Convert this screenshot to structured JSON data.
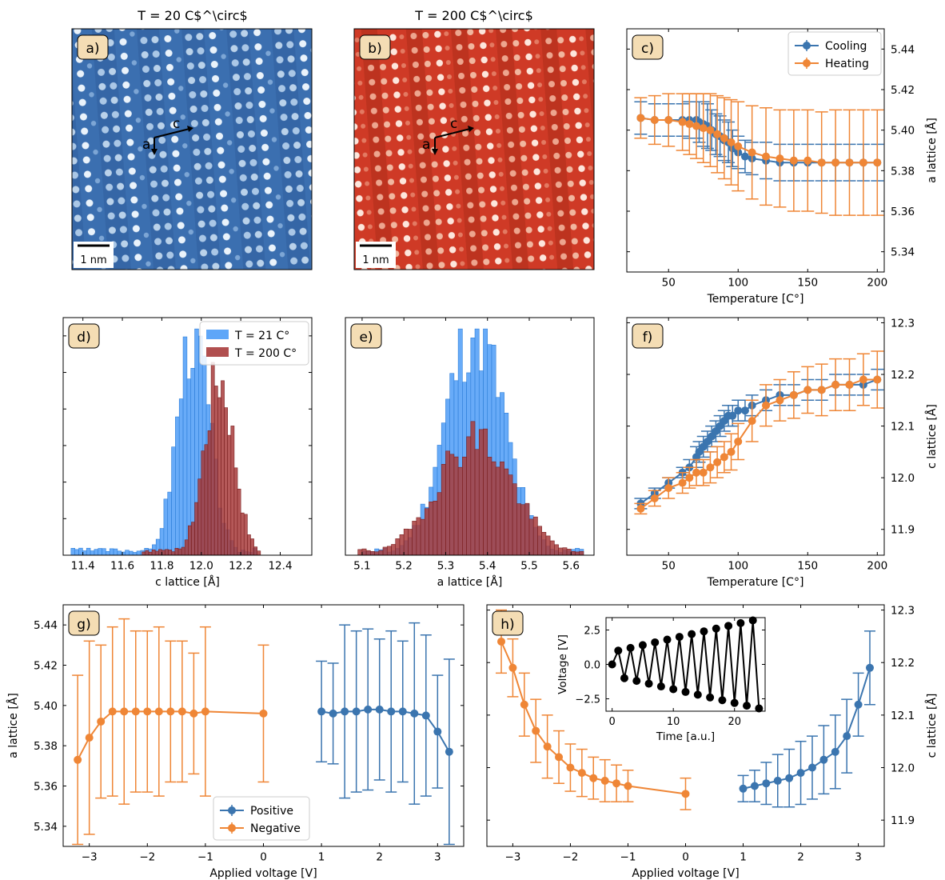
{
  "titles": {
    "a": "T = 20 C$^\\circ$",
    "b": "T = 200 C$^\\circ$"
  },
  "panel_labels": {
    "a": "a)",
    "b": "b)",
    "c": "c)",
    "d": "d)",
    "e": "e)",
    "f": "f)",
    "g": "g)",
    "h": "h)"
  },
  "micrographs": {
    "a": {
      "scale_bar": "1 nm",
      "axis_a": "a",
      "axis_c": "c"
    },
    "b": {
      "scale_bar": "1 nm",
      "axis_a": "a",
      "axis_c": "c"
    }
  },
  "colors": {
    "blue": "#3b75af",
    "orange": "#ef8636",
    "hist_blue": "#4d9cf7",
    "hist_red": "#a83c3c",
    "label_bg": "#f4ddb4",
    "map_blue": "#3b6fb0",
    "map_red": "#cf3a26",
    "inset_black": "#000000"
  },
  "chart_data": [
    {
      "id": "c",
      "type": "line",
      "xlabel": "Temperature [C$^\\circ$]",
      "ylabel": "a lattice [$\\AA$]",
      "xlim": [
        20,
        205
      ],
      "ylim": [
        5.33,
        5.45
      ],
      "xticks": [
        50,
        100,
        150,
        200
      ],
      "yticks": [
        5.34,
        5.36,
        5.38,
        5.4,
        5.42,
        5.44
      ],
      "y_axis_side": "right",
      "legend": "top-right",
      "series": [
        {
          "name": "Cooling",
          "color": "blue",
          "x": [
            30,
            40,
            50,
            60,
            65,
            70,
            72,
            75,
            78,
            81,
            84,
            87,
            90,
            93,
            96,
            100,
            105,
            110,
            120,
            130,
            140,
            150,
            160,
            170,
            180,
            190,
            200
          ],
          "y": [
            5.406,
            5.405,
            5.405,
            5.405,
            5.405,
            5.405,
            5.404,
            5.403,
            5.402,
            5.4,
            5.398,
            5.397,
            5.395,
            5.394,
            5.391,
            5.389,
            5.387,
            5.386,
            5.385,
            5.384,
            5.384,
            5.384,
            5.384,
            5.384,
            5.384,
            5.384,
            5.384
          ],
          "err": [
            0.008,
            0.008,
            0.008,
            0.008,
            0.009,
            0.009,
            0.01,
            0.011,
            0.011,
            0.01,
            0.01,
            0.01,
            0.01,
            0.01,
            0.009,
            0.008,
            0.008,
            0.008,
            0.009,
            0.009,
            0.009,
            0.009,
            0.009,
            0.009,
            0.009,
            0.009,
            0.009
          ]
        },
        {
          "name": "Heating",
          "color": "orange",
          "x": [
            30,
            40,
            50,
            60,
            65,
            70,
            75,
            80,
            85,
            90,
            95,
            100,
            110,
            120,
            130,
            140,
            150,
            160,
            170,
            180,
            190,
            200
          ],
          "y": [
            5.406,
            5.405,
            5.405,
            5.404,
            5.403,
            5.402,
            5.401,
            5.4,
            5.398,
            5.396,
            5.394,
            5.392,
            5.389,
            5.387,
            5.386,
            5.385,
            5.385,
            5.384,
            5.384,
            5.384,
            5.384,
            5.384
          ],
          "err": [
            0.01,
            0.012,
            0.013,
            0.014,
            0.015,
            0.016,
            0.017,
            0.018,
            0.019,
            0.02,
            0.021,
            0.022,
            0.023,
            0.024,
            0.024,
            0.025,
            0.025,
            0.025,
            0.026,
            0.026,
            0.026,
            0.026
          ]
        }
      ]
    },
    {
      "id": "d",
      "type": "histogram",
      "xlabel": "c lattice [$\\AA$]",
      "ylabel": "",
      "xlim": [
        11.3,
        12.56
      ],
      "ylim": [
        0,
        1.05
      ],
      "xticks": [
        11.4,
        11.6,
        11.8,
        12.0,
        12.2,
        12.4
      ],
      "ytick_count": 7,
      "legend": "top-right",
      "series": [
        {
          "name": "T = 21 C$^\\circ$",
          "color": "hist_blue",
          "mean": 11.96,
          "sd": 0.08,
          "peak": 1.0,
          "bins": [
            11.34,
            12.28
          ],
          "nbins": 48,
          "seed": 3
        },
        {
          "name": "T = 200 C$^\\circ$",
          "color": "hist_red",
          "mean": 12.09,
          "sd": 0.075,
          "peak": 0.78,
          "bins": [
            11.7,
            12.3
          ],
          "nbins": 36,
          "seed": 7
        }
      ]
    },
    {
      "id": "e",
      "type": "histogram",
      "xlabel": "a lattice [$\\AA$]",
      "ylabel": "",
      "xlim": [
        5.06,
        5.655
      ],
      "ylim": [
        0,
        1.05
      ],
      "xticks": [
        5.1,
        5.2,
        5.3,
        5.4,
        5.5,
        5.6
      ],
      "series": [
        {
          "name": "T = 21 C$^\\circ$",
          "color": "hist_blue",
          "mean": 5.37,
          "sd": 0.07,
          "peak": 1.0,
          "bins": [
            5.1,
            5.63
          ],
          "nbins": 53,
          "seed": 11
        },
        {
          "name": "T = 200 C$^\\circ$",
          "color": "hist_red",
          "mean": 5.37,
          "sd": 0.09,
          "peak": 0.52,
          "bins": [
            5.09,
            5.63
          ],
          "nbins": 54,
          "seed": 19
        }
      ]
    },
    {
      "id": "f",
      "type": "line",
      "xlabel": "Temperature [C$^\\circ$]",
      "ylabel": "c lattice [$\\AA$]",
      "xlim": [
        20,
        205
      ],
      "ylim": [
        11.85,
        12.31
      ],
      "xticks": [
        50,
        100,
        150,
        200
      ],
      "yticks": [
        11.9,
        12.0,
        12.1,
        12.2,
        12.3
      ],
      "y_axis_side": "right",
      "series": [
        {
          "name": "Cooling",
          "color": "blue",
          "x": [
            30,
            40,
            50,
            60,
            65,
            70,
            72,
            75,
            78,
            81,
            84,
            87,
            90,
            93,
            96,
            100,
            105,
            110,
            120,
            130,
            140,
            150,
            160,
            170,
            180,
            190,
            200
          ],
          "y": [
            11.95,
            11.97,
            11.99,
            12.01,
            12.02,
            12.04,
            12.05,
            12.06,
            12.07,
            12.08,
            12.09,
            12.1,
            12.11,
            12.12,
            12.12,
            12.13,
            12.13,
            12.14,
            12.15,
            12.16,
            12.16,
            12.17,
            12.17,
            12.18,
            12.18,
            12.18,
            12.19
          ],
          "err": [
            0.01,
            0.01,
            0.01,
            0.01,
            0.015,
            0.02,
            0.02,
            0.02,
            0.02,
            0.02,
            0.02,
            0.02,
            0.02,
            0.02,
            0.02,
            0.02,
            0.02,
            0.02,
            0.02,
            0.02,
            0.02,
            0.02,
            0.02,
            0.02,
            0.02,
            0.02,
            0.02
          ]
        },
        {
          "name": "Heating",
          "color": "orange",
          "x": [
            30,
            40,
            50,
            60,
            65,
            70,
            75,
            80,
            85,
            90,
            95,
            100,
            110,
            120,
            130,
            140,
            150,
            160,
            170,
            180,
            190,
            200
          ],
          "y": [
            11.94,
            11.96,
            11.98,
            11.99,
            12.0,
            12.01,
            12.01,
            12.02,
            12.03,
            12.04,
            12.05,
            12.07,
            12.11,
            12.14,
            12.15,
            12.16,
            12.17,
            12.17,
            12.18,
            12.18,
            12.19,
            12.19
          ],
          "err": [
            0.01,
            0.015,
            0.02,
            0.02,
            0.02,
            0.025,
            0.025,
            0.03,
            0.03,
            0.03,
            0.035,
            0.035,
            0.04,
            0.04,
            0.04,
            0.045,
            0.045,
            0.05,
            0.05,
            0.05,
            0.05,
            0.055
          ]
        }
      ]
    },
    {
      "id": "g",
      "type": "line",
      "xlabel": "Applied voltage [V]",
      "ylabel": "a lattice [$\\AA$]",
      "xlim": [
        -3.45,
        3.45
      ],
      "ylim": [
        5.33,
        5.45
      ],
      "xticks": [
        -3,
        -2,
        -1,
        0,
        1,
        2,
        3
      ],
      "yticks": [
        5.34,
        5.36,
        5.38,
        5.4,
        5.42,
        5.44
      ],
      "y_axis_side": "left",
      "legend": "lower-center",
      "series": [
        {
          "name": "Positive",
          "color": "blue",
          "x": [
            1.0,
            1.2,
            1.4,
            1.6,
            1.8,
            2.0,
            2.2,
            2.4,
            2.6,
            2.8,
            3.0,
            3.2
          ],
          "y": [
            5.397,
            5.396,
            5.397,
            5.397,
            5.398,
            5.398,
            5.397,
            5.397,
            5.396,
            5.395,
            5.387,
            5.377
          ],
          "err": [
            0.025,
            0.025,
            0.043,
            0.04,
            0.04,
            0.035,
            0.04,
            0.035,
            0.045,
            0.04,
            0.028,
            0.046
          ]
        },
        {
          "name": "Negative",
          "color": "orange",
          "x": [
            -3.2,
            -3.0,
            -2.8,
            -2.6,
            -2.4,
            -2.2,
            -2.0,
            -1.8,
            -1.6,
            -1.4,
            -1.2,
            -1.0,
            0
          ],
          "y": [
            5.373,
            5.384,
            5.392,
            5.397,
            5.397,
            5.397,
            5.397,
            5.397,
            5.397,
            5.397,
            5.396,
            5.397,
            5.396
          ],
          "err": [
            0.042,
            0.048,
            0.038,
            0.042,
            0.046,
            0.04,
            0.04,
            0.042,
            0.035,
            0.035,
            0.03,
            0.042,
            0.034
          ]
        }
      ]
    },
    {
      "id": "h",
      "type": "line",
      "xlabel": "Applied voltage [V]",
      "ylabel": "c lattice [$\\AA$]",
      "xlim": [
        -3.45,
        3.45
      ],
      "ylim": [
        11.85,
        12.31
      ],
      "xticks": [
        -3,
        -2,
        -1,
        0,
        1,
        2,
        3
      ],
      "yticks": [
        11.9,
        12.0,
        12.1,
        12.2,
        12.3
      ],
      "y_axis_side": "right",
      "series": [
        {
          "name": "Positive",
          "color": "blue",
          "x": [
            1.0,
            1.2,
            1.4,
            1.6,
            1.8,
            2.0,
            2.2,
            2.4,
            2.6,
            2.8,
            3.0,
            3.2
          ],
          "y": [
            11.96,
            11.965,
            11.97,
            11.975,
            11.98,
            11.99,
            12.0,
            12.015,
            12.03,
            12.06,
            12.12,
            12.19
          ],
          "err": [
            0.025,
            0.03,
            0.04,
            0.05,
            0.055,
            0.06,
            0.06,
            0.065,
            0.07,
            0.07,
            0.06,
            0.07
          ]
        },
        {
          "name": "Negative",
          "color": "orange",
          "x": [
            -3.2,
            -3.0,
            -2.8,
            -2.6,
            -2.4,
            -2.2,
            -2.0,
            -1.8,
            -1.6,
            -1.4,
            -1.2,
            -1.0,
            0
          ],
          "y": [
            12.24,
            12.19,
            12.12,
            12.07,
            12.04,
            12.02,
            12.0,
            11.99,
            11.98,
            11.975,
            11.97,
            11.965,
            11.95
          ],
          "err": [
            0.06,
            0.055,
            0.06,
            0.06,
            0.06,
            0.05,
            0.045,
            0.045,
            0.04,
            0.04,
            0.035,
            0.03,
            0.03
          ]
        }
      ]
    },
    {
      "id": "h-inset",
      "type": "line",
      "xlabel": "Time [a.u.]",
      "ylabel": "Voltage [V]",
      "xlim": [
        -1,
        25
      ],
      "ylim": [
        -3.4,
        3.4
      ],
      "xticks": [
        0,
        10,
        20
      ],
      "yticks": [
        -2.5,
        0.0,
        2.5
      ],
      "series": [
        {
          "name": "",
          "color": "inset_black",
          "x": [
            0,
            1,
            2,
            3,
            4,
            5,
            6,
            7,
            8,
            9,
            10,
            11,
            12,
            13,
            14,
            15,
            16,
            17,
            18,
            19,
            20,
            21,
            22,
            23,
            24
          ],
          "y": [
            0,
            1.0,
            -1.0,
            1.2,
            -1.2,
            1.4,
            -1.4,
            1.6,
            -1.6,
            1.8,
            -1.8,
            2.0,
            -2.0,
            2.2,
            -2.2,
            2.4,
            -2.4,
            2.6,
            -2.6,
            2.8,
            -2.8,
            3.0,
            -3.0,
            3.2,
            -3.2
          ]
        }
      ]
    }
  ]
}
